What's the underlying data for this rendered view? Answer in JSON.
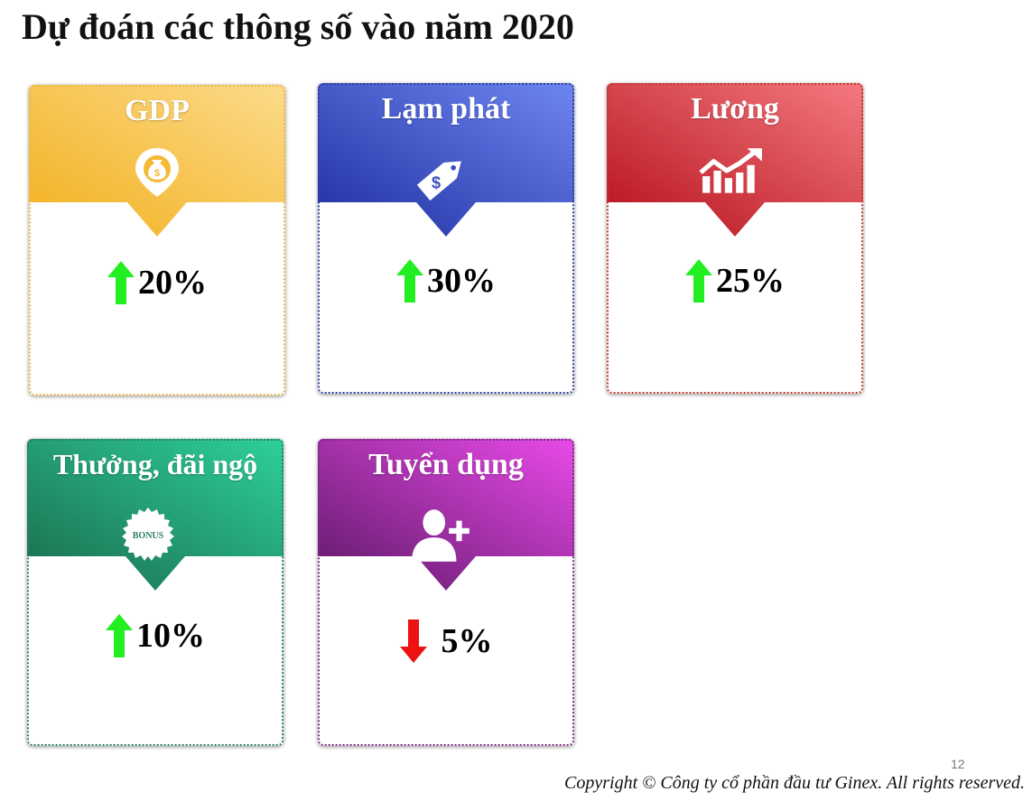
{
  "title": "Dự đoán các thông số vào năm 2020",
  "cards": [
    {
      "label": "GDP",
      "value": "20%",
      "trend": "up",
      "icon": "money-bag-pin-icon",
      "colors": {
        "from": "#F2B01E",
        "to": "#FCDB8A",
        "dot": "#E9B84A"
      }
    },
    {
      "label": "Lạm phát",
      "value": "30%",
      "trend": "up",
      "icon": "price-tag-dollar-icon",
      "colors": {
        "from": "#1E2E9E",
        "to": "#6E86F2",
        "dot": "#2E3E9E"
      }
    },
    {
      "label": "Lương",
      "value": "25%",
      "trend": "up",
      "icon": "growth-chart-icon",
      "colors": {
        "from": "#B50F1A",
        "to": "#F47A80",
        "dot": "#C0392B"
      }
    },
    {
      "label": "Thưởng, đãi ngộ",
      "value": "10%",
      "trend": "up",
      "icon": "bonus-badge-icon",
      "icon_text": "BONUS",
      "colors": {
        "from": "#1A6B4C",
        "to": "#2ED09A",
        "dot": "#2A7F5A"
      }
    },
    {
      "label": "Tuyển dụng",
      "value": "5%",
      "trend": "down",
      "icon": "add-user-icon",
      "colors": {
        "from": "#5E1868",
        "to": "#E84AE8",
        "dot": "#7A2A7F"
      }
    }
  ],
  "trend_colors": {
    "up": "#22EE22",
    "down": "#EE1111"
  },
  "page_number": "12",
  "copyright": "Copyright © Công ty cổ phần đầu tư Ginex. All rights reserved."
}
